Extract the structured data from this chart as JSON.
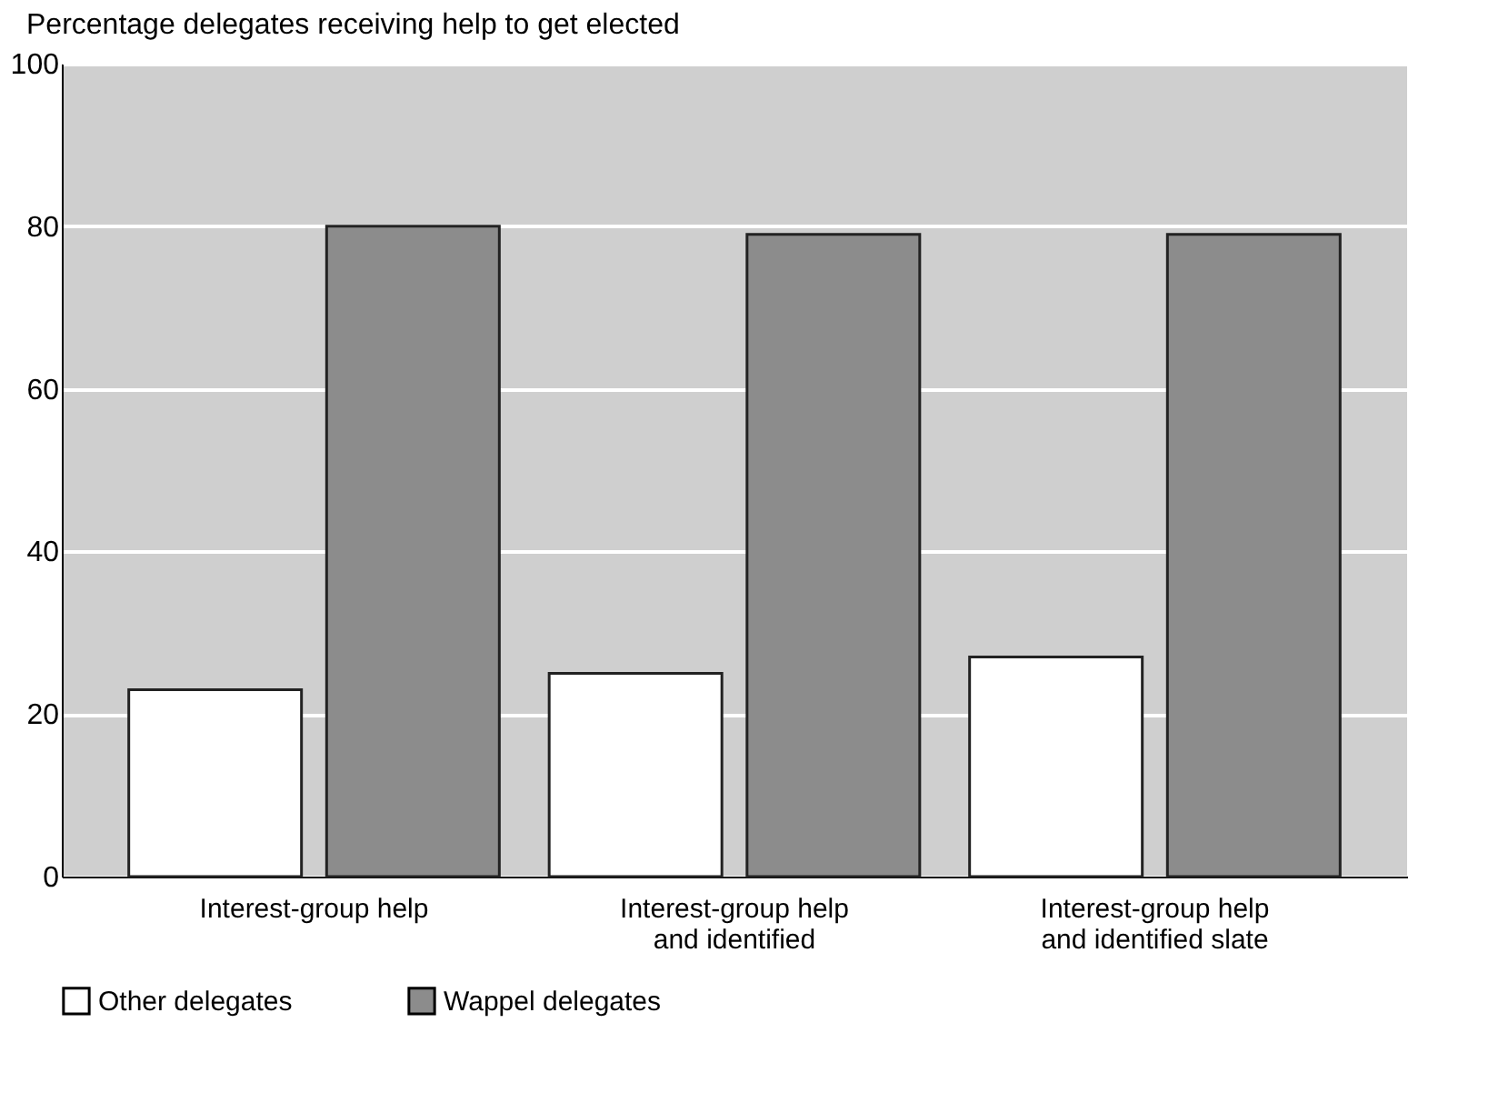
{
  "chart_data": {
    "type": "bar",
    "ylabel": "Percentage delegates receiving help to get elected",
    "categories": [
      "Interest-group help",
      "Interest-group help\nand identified",
      "Interest-group help\nand identified slate"
    ],
    "series": [
      {
        "name": "Other delegates",
        "color": "#ffffff",
        "values": [
          23,
          25,
          27
        ]
      },
      {
        "name": "Wappel delegates",
        "color": "#8c8c8c",
        "values": [
          80,
          79,
          79
        ]
      }
    ],
    "ylim": [
      0,
      100
    ],
    "yticks": [
      0,
      20,
      40,
      60,
      80,
      100
    ],
    "grid": "y",
    "legend": "bottom"
  }
}
